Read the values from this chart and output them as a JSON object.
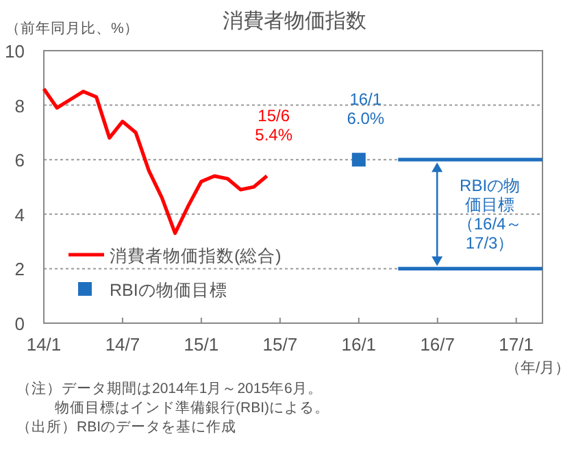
{
  "chart_data": {
    "type": "line",
    "title": "消費者物価指数",
    "ylabel": "（前年同月比、%）",
    "xlabel": "（年/月）",
    "xlim": [
      "2014-01",
      "2017-03"
    ],
    "xticks": [
      {
        "value": "2014-01",
        "label": "14/1"
      },
      {
        "value": "2014-07",
        "label": "14/7"
      },
      {
        "value": "2015-01",
        "label": "15/1"
      },
      {
        "value": "2015-07",
        "label": "15/7"
      },
      {
        "value": "2016-01",
        "label": "16/1"
      },
      {
        "value": "2016-07",
        "label": "16/7"
      },
      {
        "value": "2017-01",
        "label": "17/1"
      }
    ],
    "ylim": [
      0,
      10
    ],
    "yticks": [
      0,
      2,
      4,
      6,
      8,
      10
    ],
    "grid": "y",
    "legend": "bottom left",
    "series": [
      {
        "name": "消費者物価指数(総合)",
        "color": "#ff0000",
        "x": [
          "2014-01",
          "2014-02",
          "2014-03",
          "2014-04",
          "2014-05",
          "2014-06",
          "2014-07",
          "2014-08",
          "2014-09",
          "2014-10",
          "2014-11",
          "2014-12",
          "2015-01",
          "2015-02",
          "2015-03",
          "2015-04",
          "2015-05",
          "2015-06"
        ],
        "values": [
          8.6,
          7.9,
          8.2,
          8.5,
          8.3,
          6.8,
          7.4,
          7.0,
          5.6,
          4.6,
          3.3,
          4.3,
          5.2,
          5.4,
          5.3,
          4.9,
          5.0,
          5.4
        ]
      },
      {
        "name": "RBIの物価目標",
        "type": "scatter",
        "marker": "square",
        "color": "#1f6fbf",
        "x": [
          "2016-01"
        ],
        "values": [
          6.0
        ]
      },
      {
        "color": "#1f6fbf",
        "x": [
          "2016-04",
          "2017-03"
        ],
        "values": [
          6,
          6
        ]
      },
      {
        "color": "#1f6fbf",
        "x": [
          "2016-04",
          "2017-03"
        ],
        "values": [
          2,
          2
        ]
      }
    ],
    "annotations": [
      {
        "text": "15/6\n5.4%",
        "x": "2015-06",
        "y": 5.4
      },
      {
        "text": "16/1\n6.0%",
        "x": "2016-01",
        "y": 6.0
      },
      "RBIの物価目標（16/4～17/3）",
      "（注）データ期間は2014年1月～2015年6月。",
      "物価目標はインド準備銀行(RBI)による。",
      "（出所）RBIのデータを基に作成"
    ]
  }
}
